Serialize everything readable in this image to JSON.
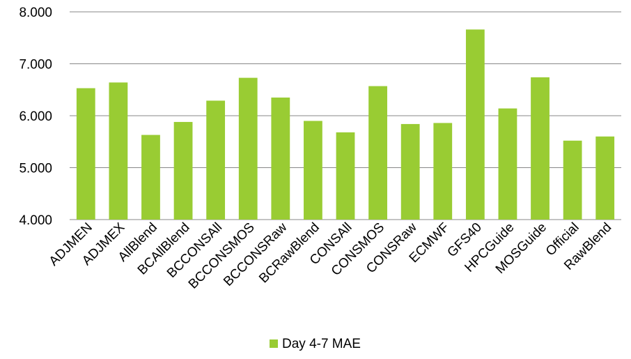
{
  "chart_data": {
    "type": "bar",
    "categories": [
      "ADJMEN",
      "ADJMEX",
      "AllBlend",
      "BCAllBlend",
      "BCCONSAll",
      "BCCONSMOS",
      "BCCONSRaw",
      "BCRawBlend",
      "CONSAll",
      "CONSMOS",
      "CONSRaw",
      "ECMWF",
      "GFS40",
      "HPCGuide",
      "MOSGuide",
      "Official",
      "RawBlend"
    ],
    "series": [
      {
        "name": "Day 4-7 MAE",
        "values": [
          6.53,
          6.64,
          5.63,
          5.88,
          6.29,
          6.73,
          6.35,
          5.9,
          5.68,
          6.57,
          5.84,
          5.86,
          7.66,
          6.14,
          6.74,
          5.52,
          5.6
        ],
        "color": "#99cc33"
      }
    ],
    "ylim": [
      4,
      8
    ],
    "yticks": [
      4,
      5,
      6,
      7,
      8
    ],
    "ytick_labels": [
      "4.000",
      "5.000",
      "6.000",
      "7.000",
      "8.000"
    ],
    "grid": true,
    "legend_position": "bottom"
  },
  "colors": {
    "bar": "#99cc33",
    "grid": "#878787"
  }
}
